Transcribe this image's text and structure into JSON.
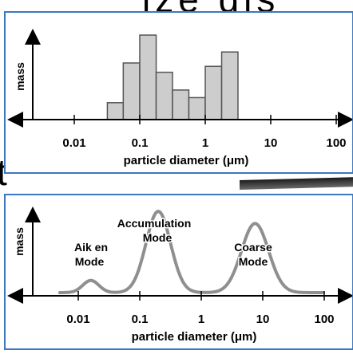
{
  "background_fragments": {
    "top_text": "ize  dis",
    "mid_text": "t"
  },
  "histogram": {
    "ylabel": "mass",
    "xlabel": "particle diameter (μm)",
    "ticks": [
      "0.01",
      "0.1",
      "1",
      "10",
      "100"
    ],
    "bin_edges": [
      0.032,
      0.056,
      0.1,
      0.178,
      0.316,
      0.562,
      1.0,
      1.78,
      3.16,
      5.62,
      10
    ],
    "heights": [
      0.2,
      0.67,
      1.0,
      0.56,
      0.35,
      0.26,
      0.63,
      0.8,
      0.0,
      0.0
    ],
    "fill": "#cdcdcd",
    "stroke": "#555555"
  },
  "curve": {
    "ylabel": "mass",
    "xlabel": "particle diameter (μm)",
    "ticks": [
      "0.01",
      "0.1",
      "1",
      "10",
      "100"
    ],
    "labels": {
      "aitken_line1": "Aik en",
      "aitken_line2": "Mode",
      "accum_line1": "Accumulation",
      "accum_line2": "Mode",
      "coarse_line1": "Coarse",
      "coarse_line2": "Mode"
    },
    "stroke": "#8f8f8f",
    "modes": [
      {
        "center_um": 0.016,
        "peak": 0.15
      },
      {
        "center_um": 0.2,
        "peak": 1.0
      },
      {
        "center_um": 7.5,
        "peak": 0.85
      }
    ]
  },
  "colors": {
    "panel_border": "#3c78bf",
    "axis": "#000000"
  }
}
